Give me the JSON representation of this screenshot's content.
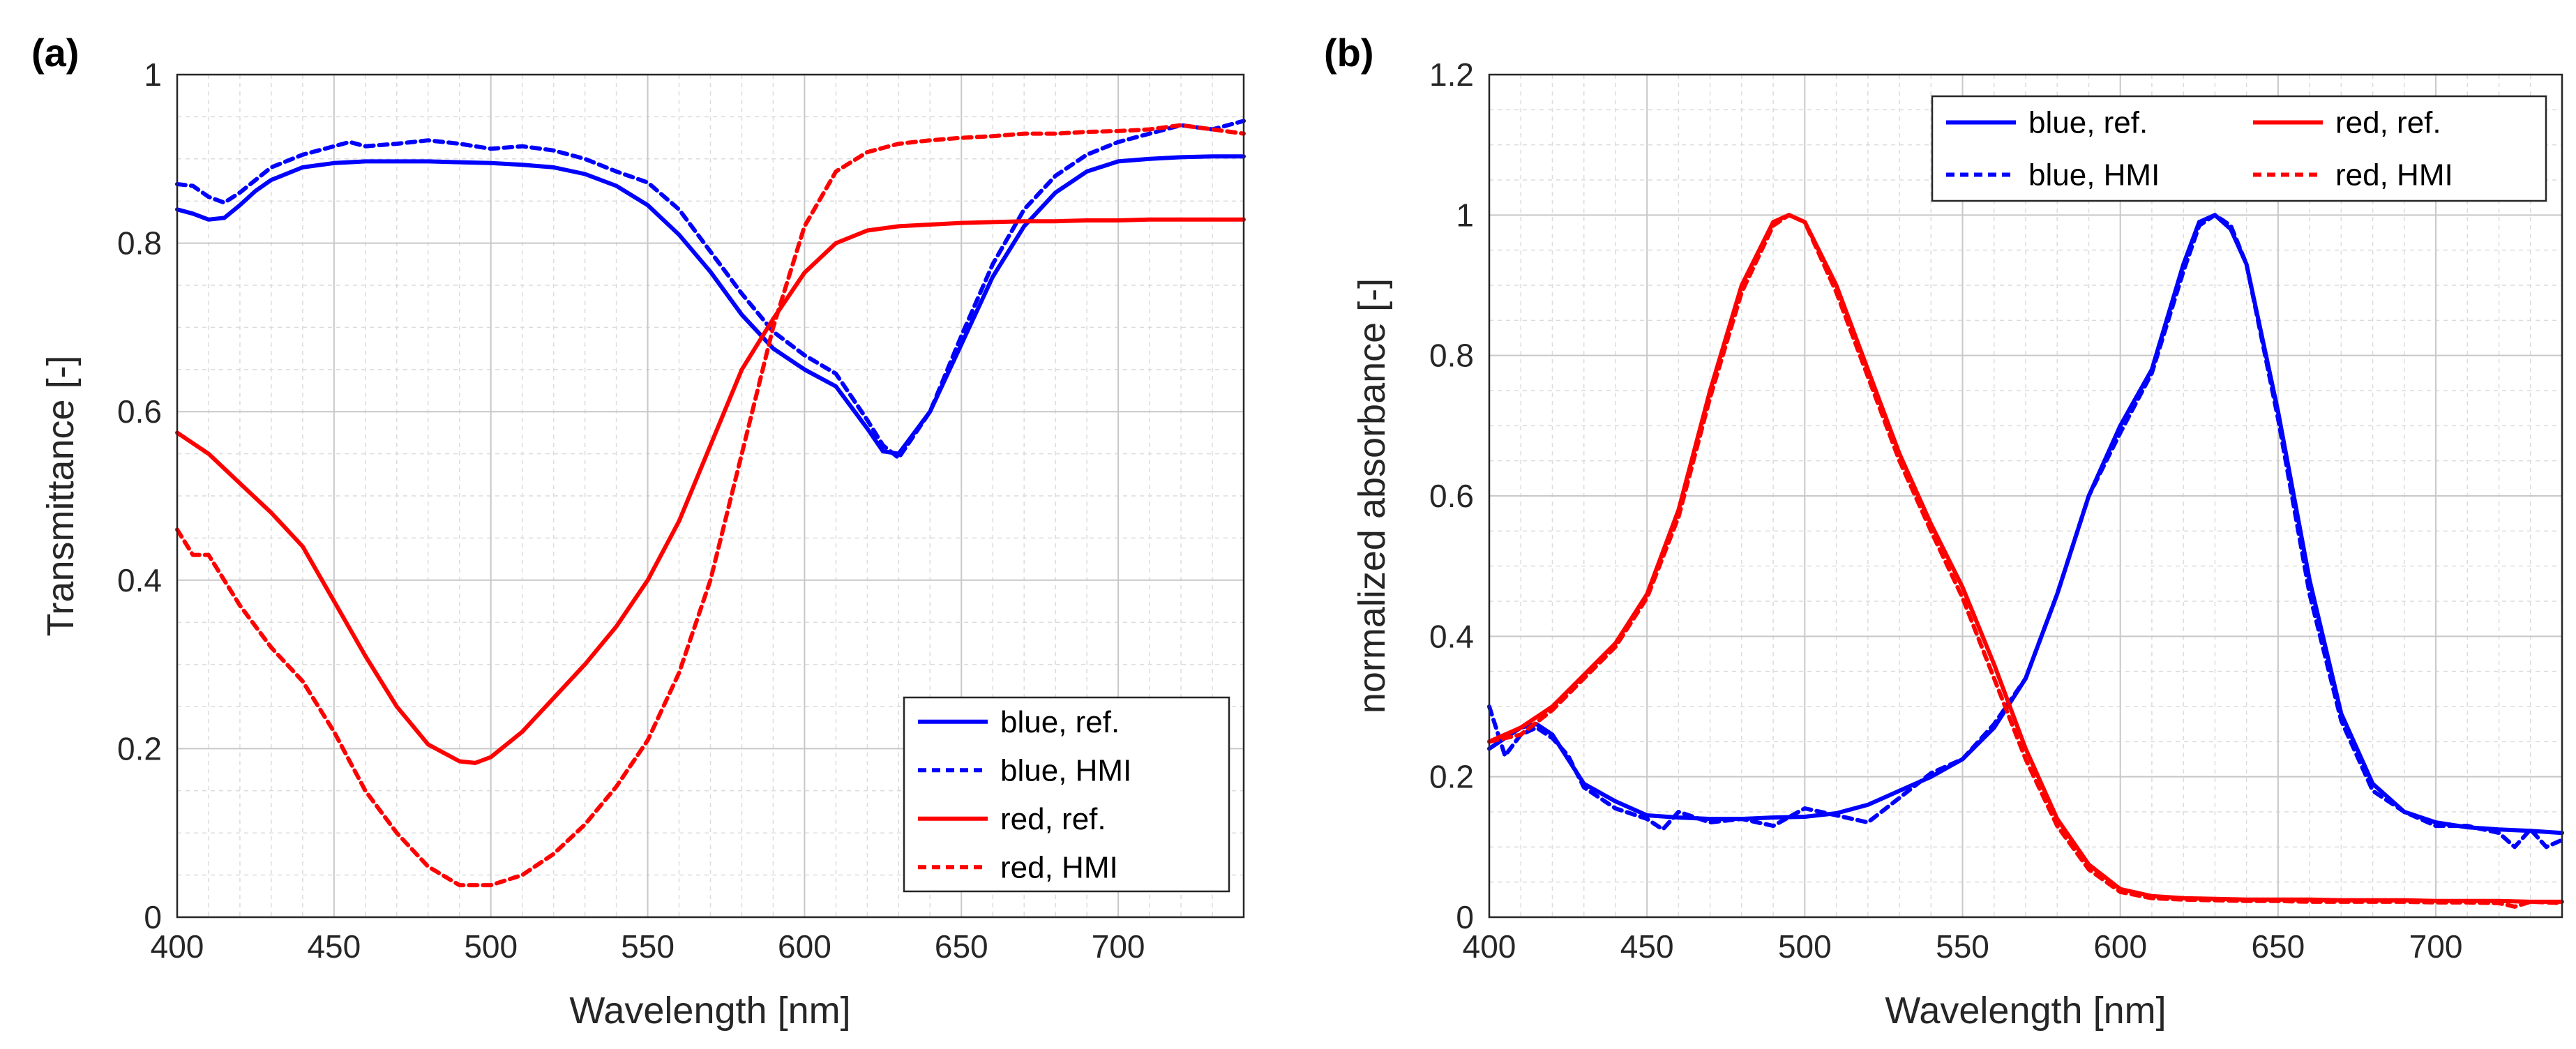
{
  "chart_data": [
    {
      "type": "line",
      "panel_label": "(a)",
      "title": "",
      "xlabel": "Wavelength [nm]",
      "ylabel": "Transmittance [-]",
      "xlim": [
        400,
        740
      ],
      "ylim": [
        0,
        1
      ],
      "xticks": [
        400,
        450,
        500,
        550,
        600,
        650,
        700
      ],
      "xtick_labels": [
        "400",
        "450",
        "500",
        "550",
        "600",
        "650",
        "700"
      ],
      "yticks": [
        0,
        0.2,
        0.4,
        0.6,
        0.8,
        1
      ],
      "ytick_labels": [
        "0",
        "0.2",
        "0.4",
        "0.6",
        "0.8",
        "1"
      ],
      "grid": true,
      "legend_position": "bottom-right",
      "legend_columns": 1,
      "series": [
        {
          "name": "blue, ref.",
          "color": "#0000ff",
          "style": "solid",
          "x": [
            400,
            405,
            410,
            415,
            420,
            425,
            430,
            440,
            450,
            460,
            470,
            480,
            490,
            500,
            510,
            520,
            530,
            540,
            550,
            560,
            570,
            580,
            590,
            600,
            610,
            620,
            625,
            630,
            640,
            650,
            660,
            670,
            680,
            690,
            700,
            710,
            720,
            730,
            740
          ],
          "y": [
            0.84,
            0.835,
            0.828,
            0.83,
            0.845,
            0.862,
            0.875,
            0.89,
            0.895,
            0.897,
            0.897,
            0.897,
            0.896,
            0.895,
            0.893,
            0.89,
            0.882,
            0.868,
            0.845,
            0.81,
            0.766,
            0.715,
            0.675,
            0.65,
            0.63,
            0.58,
            0.553,
            0.55,
            0.6,
            0.68,
            0.76,
            0.82,
            0.86,
            0.885,
            0.897,
            0.9,
            0.902,
            0.903,
            0.903
          ]
        },
        {
          "name": "blue, HMI",
          "color": "#0000ff",
          "style": "dotted",
          "x": [
            400,
            405,
            410,
            415,
            420,
            425,
            430,
            440,
            450,
            455,
            460,
            470,
            480,
            490,
            500,
            510,
            520,
            530,
            540,
            550,
            560,
            570,
            580,
            590,
            600,
            610,
            620,
            625,
            630,
            640,
            650,
            660,
            670,
            680,
            690,
            700,
            710,
            720,
            730,
            740
          ],
          "y": [
            0.87,
            0.868,
            0.855,
            0.848,
            0.86,
            0.875,
            0.89,
            0.905,
            0.915,
            0.92,
            0.915,
            0.918,
            0.922,
            0.918,
            0.912,
            0.915,
            0.91,
            0.9,
            0.885,
            0.872,
            0.84,
            0.79,
            0.74,
            0.695,
            0.667,
            0.645,
            0.59,
            0.56,
            0.545,
            0.6,
            0.69,
            0.775,
            0.84,
            0.88,
            0.905,
            0.92,
            0.93,
            0.94,
            0.935,
            0.945
          ]
        },
        {
          "name": "red, ref.",
          "color": "#ff0000",
          "style": "solid",
          "x": [
            400,
            410,
            420,
            430,
            440,
            450,
            460,
            470,
            480,
            490,
            495,
            500,
            510,
            520,
            530,
            540,
            550,
            560,
            570,
            580,
            590,
            600,
            610,
            620,
            630,
            640,
            650,
            660,
            670,
            680,
            690,
            700,
            710,
            720,
            730,
            740
          ],
          "y": [
            0.575,
            0.55,
            0.515,
            0.48,
            0.44,
            0.375,
            0.31,
            0.25,
            0.205,
            0.185,
            0.183,
            0.19,
            0.22,
            0.26,
            0.3,
            0.345,
            0.4,
            0.47,
            0.56,
            0.65,
            0.71,
            0.765,
            0.8,
            0.815,
            0.82,
            0.822,
            0.824,
            0.825,
            0.826,
            0.826,
            0.827,
            0.827,
            0.828,
            0.828,
            0.828,
            0.828
          ]
        },
        {
          "name": "red, HMI",
          "color": "#ff0000",
          "style": "dotted",
          "x": [
            400,
            405,
            410,
            420,
            430,
            440,
            450,
            460,
            470,
            480,
            490,
            500,
            510,
            520,
            530,
            540,
            550,
            560,
            570,
            580,
            590,
            600,
            610,
            620,
            630,
            640,
            650,
            660,
            670,
            680,
            690,
            700,
            710,
            720,
            730,
            740
          ],
          "y": [
            0.46,
            0.43,
            0.43,
            0.37,
            0.32,
            0.28,
            0.22,
            0.15,
            0.1,
            0.06,
            0.038,
            0.038,
            0.05,
            0.075,
            0.11,
            0.155,
            0.21,
            0.29,
            0.4,
            0.55,
            0.7,
            0.82,
            0.885,
            0.908,
            0.918,
            0.922,
            0.925,
            0.927,
            0.93,
            0.93,
            0.932,
            0.933,
            0.935,
            0.94,
            0.935,
            0.93
          ]
        }
      ]
    },
    {
      "type": "line",
      "panel_label": "(b)",
      "title": "",
      "xlabel": "Wavelength [nm]",
      "ylabel": "normalized absorbance [-]",
      "xlim": [
        400,
        740
      ],
      "ylim": [
        0,
        1.2
      ],
      "xticks": [
        400,
        450,
        500,
        550,
        600,
        650,
        700
      ],
      "xtick_labels": [
        "400",
        "450",
        "500",
        "550",
        "600",
        "650",
        "700"
      ],
      "yticks": [
        0,
        0.2,
        0.4,
        0.6,
        0.8,
        1,
        1.2
      ],
      "ytick_labels": [
        "0",
        "0.2",
        "0.4",
        "0.6",
        "0.8",
        "1",
        "1.2"
      ],
      "grid": true,
      "legend_position": "top-right",
      "legend_columns": 2,
      "series": [
        {
          "name": "blue, ref.",
          "color": "#0000ff",
          "style": "solid",
          "x": [
            400,
            405,
            410,
            415,
            420,
            425,
            430,
            440,
            450,
            460,
            470,
            480,
            490,
            500,
            510,
            520,
            530,
            540,
            550,
            560,
            570,
            580,
            590,
            600,
            610,
            620,
            625,
            630,
            635,
            640,
            650,
            660,
            670,
            680,
            690,
            700,
            710,
            720,
            730,
            740
          ],
          "y": [
            0.24,
            0.255,
            0.27,
            0.275,
            0.26,
            0.225,
            0.19,
            0.165,
            0.145,
            0.142,
            0.14,
            0.14,
            0.142,
            0.143,
            0.148,
            0.16,
            0.18,
            0.2,
            0.225,
            0.27,
            0.34,
            0.46,
            0.6,
            0.7,
            0.78,
            0.93,
            0.99,
            1.0,
            0.98,
            0.93,
            0.72,
            0.48,
            0.29,
            0.19,
            0.15,
            0.135,
            0.128,
            0.125,
            0.123,
            0.12
          ]
        },
        {
          "name": "blue, HMI",
          "color": "#0000ff",
          "style": "dotted",
          "x": [
            400,
            405,
            410,
            415,
            420,
            425,
            430,
            440,
            450,
            455,
            460,
            470,
            480,
            490,
            500,
            510,
            520,
            530,
            540,
            550,
            560,
            570,
            580,
            590,
            600,
            610,
            620,
            625,
            630,
            635,
            640,
            650,
            660,
            670,
            680,
            690,
            700,
            710,
            720,
            725,
            730,
            735,
            740
          ],
          "y": [
            0.3,
            0.23,
            0.26,
            0.27,
            0.255,
            0.23,
            0.185,
            0.155,
            0.14,
            0.125,
            0.15,
            0.135,
            0.14,
            0.13,
            0.155,
            0.145,
            0.135,
            0.17,
            0.205,
            0.225,
            0.275,
            0.34,
            0.46,
            0.6,
            0.69,
            0.775,
            0.92,
            0.985,
            1.0,
            0.985,
            0.93,
            0.71,
            0.46,
            0.28,
            0.18,
            0.15,
            0.13,
            0.13,
            0.12,
            0.1,
            0.125,
            0.1,
            0.11
          ]
        },
        {
          "name": "red, ref.",
          "color": "#ff0000",
          "style": "solid",
          "x": [
            400,
            410,
            420,
            430,
            440,
            450,
            460,
            470,
            480,
            490,
            495,
            500,
            510,
            520,
            530,
            540,
            550,
            560,
            570,
            580,
            590,
            600,
            610,
            620,
            630,
            640,
            650,
            660,
            670,
            680,
            690,
            700,
            710,
            720,
            730,
            740
          ],
          "y": [
            0.25,
            0.27,
            0.3,
            0.345,
            0.39,
            0.46,
            0.58,
            0.75,
            0.9,
            0.99,
            1.0,
            0.99,
            0.9,
            0.78,
            0.66,
            0.56,
            0.47,
            0.36,
            0.24,
            0.14,
            0.075,
            0.04,
            0.03,
            0.027,
            0.026,
            0.025,
            0.025,
            0.025,
            0.024,
            0.024,
            0.024,
            0.023,
            0.023,
            0.023,
            0.022,
            0.022
          ]
        },
        {
          "name": "red, HMI",
          "color": "#ff0000",
          "style": "dotted",
          "x": [
            400,
            410,
            420,
            430,
            440,
            450,
            460,
            470,
            480,
            490,
            495,
            500,
            510,
            520,
            530,
            540,
            550,
            560,
            570,
            580,
            590,
            600,
            610,
            620,
            630,
            640,
            650,
            660,
            670,
            680,
            690,
            700,
            710,
            720,
            725,
            730,
            740
          ],
          "y": [
            0.25,
            0.26,
            0.295,
            0.34,
            0.385,
            0.455,
            0.57,
            0.74,
            0.89,
            0.985,
            1.0,
            0.99,
            0.89,
            0.77,
            0.65,
            0.55,
            0.455,
            0.34,
            0.225,
            0.13,
            0.068,
            0.036,
            0.027,
            0.025,
            0.024,
            0.023,
            0.023,
            0.022,
            0.022,
            0.022,
            0.022,
            0.021,
            0.021,
            0.02,
            0.015,
            0.022,
            0.02
          ]
        }
      ]
    }
  ]
}
